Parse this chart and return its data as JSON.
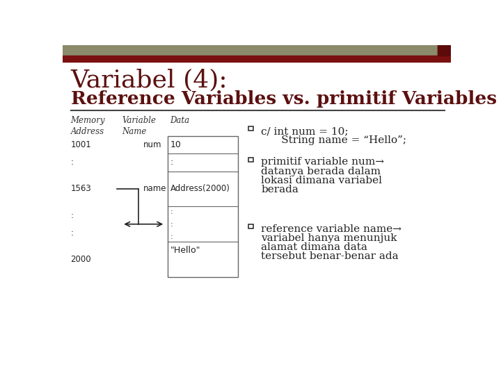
{
  "title_line1": "Variabel (4):",
  "title_line2": "Reference Variables vs. primitif Variables",
  "bg_color": "#ffffff",
  "header_bar1_color": "#8B8B6B",
  "header_bar2_color": "#7A1010",
  "title_color": "#5C1010",
  "table_header_color": "#333333",
  "text_color": "#222222",
  "divider_color": "#444444",
  "table_border_color": "#666666",
  "bullet1_l1": "c/ int num = 10;",
  "bullet1_l2": "      String name = “Hello”;",
  "bullet2_l1": "primitif variable num→",
  "bullet2_lines": [
    "datanya berada dalam",
    "lokasi dimana variabel",
    "berada"
  ],
  "bullet3_l1": "reference variable name→",
  "bullet3_lines": [
    "variabel hanya menunjuk",
    "alamat dimana data",
    "tersebut benar-benar ada"
  ]
}
